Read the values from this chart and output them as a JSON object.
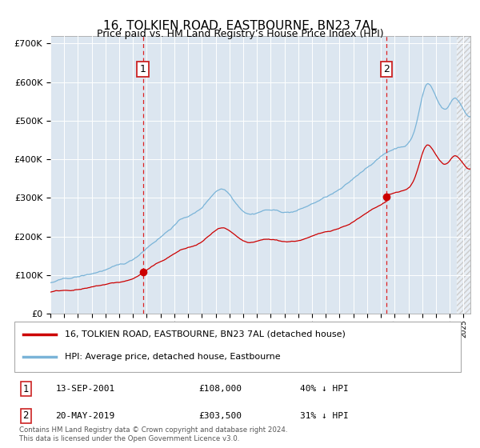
{
  "title": "16, TOLKIEN ROAD, EASTBOURNE, BN23 7AL",
  "subtitle": "Price paid vs. HM Land Registry’s House Price Index (HPI)",
  "plot_bg_color": "#dce6f0",
  "hpi_color": "#7ab4d8",
  "price_color": "#cc0000",
  "ylim": [
    0,
    720000
  ],
  "yticks": [
    0,
    100000,
    200000,
    300000,
    400000,
    500000,
    600000,
    700000
  ],
  "sale1_year_num": 2001.71,
  "sale1_price": 108000,
  "sale2_year_num": 2019.38,
  "sale2_price": 303500,
  "legend_line1": "16, TOLKIEN ROAD, EASTBOURNE, BN23 7AL (detached house)",
  "legend_line2": "HPI: Average price, detached house, Eastbourne",
  "footer": "Contains HM Land Registry data © Crown copyright and database right 2024.\nThis data is licensed under the Open Government Licence v3.0.",
  "xmin": 1995.0,
  "xmax": 2025.5
}
